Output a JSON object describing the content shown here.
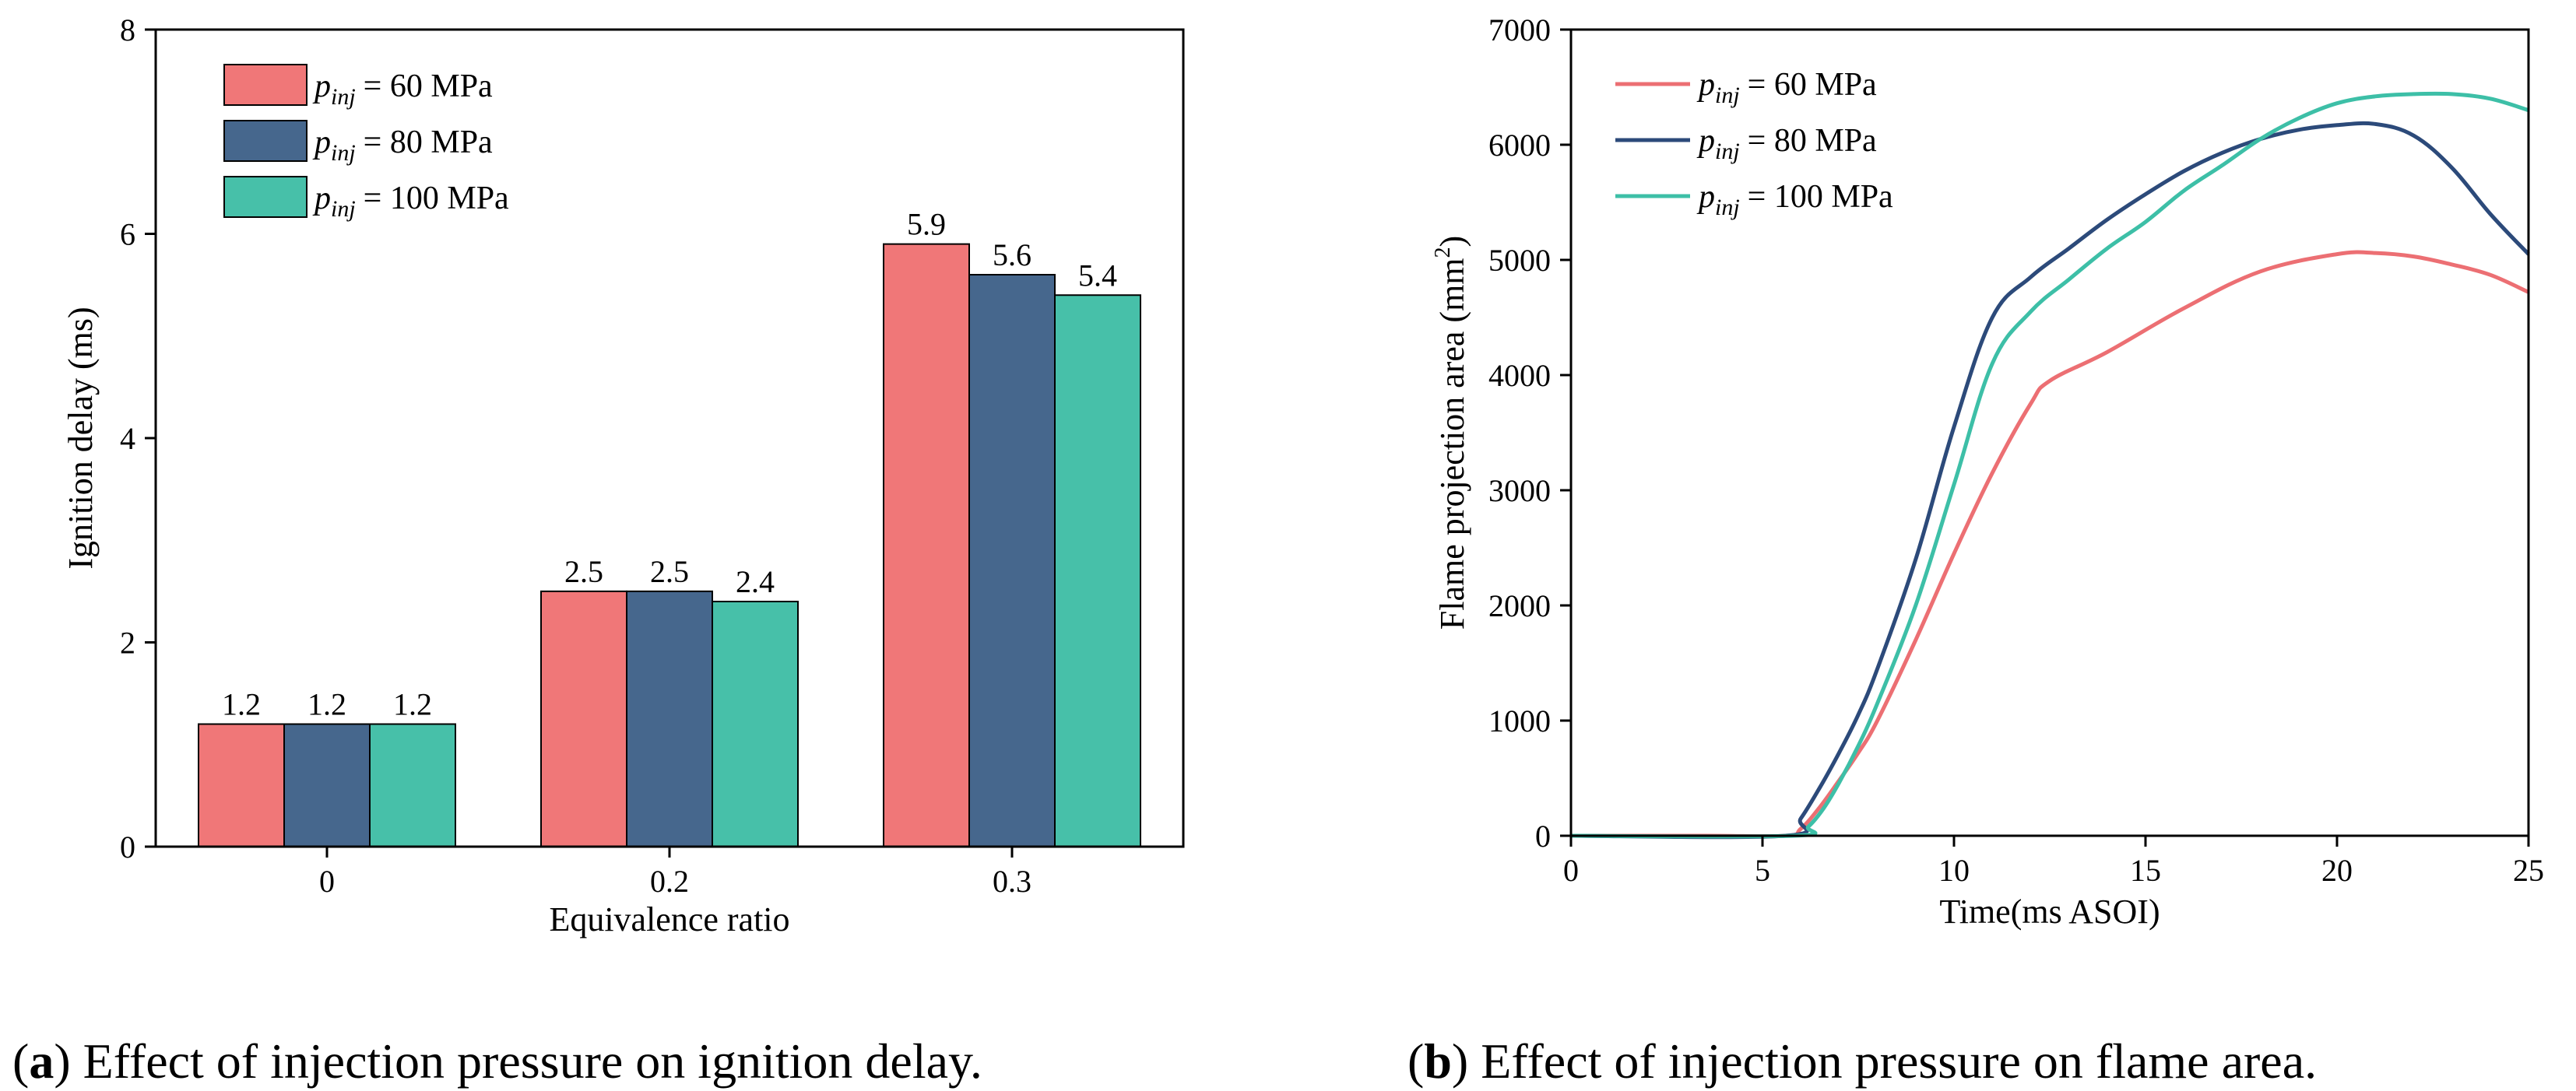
{
  "chart_data": [
    {
      "type": "bar",
      "title": "",
      "xlabel": "Equivalence ratio",
      "ylabel": "Ignition delay (ms)",
      "ylim": [
        0,
        8
      ],
      "yticks": [
        "0",
        "2",
        "4",
        "6",
        "8"
      ],
      "categories": [
        "0",
        "0.2",
        "0.3"
      ],
      "series": [
        {
          "name": "= 60 MPa",
          "values": [
            1.2,
            2.5,
            5.9
          ],
          "labels": [
            "1.2",
            "2.5",
            "5.9"
          ],
          "color": "#f07778"
        },
        {
          "name": "= 80 MPa",
          "values": [
            1.2,
            2.5,
            5.6
          ],
          "labels": [
            "1.2",
            "2.5",
            "5.6"
          ],
          "color": "#46678d"
        },
        {
          "name": "= 100 MPa",
          "values": [
            1.2,
            2.4,
            5.4
          ],
          "labels": [
            "1.2",
            "2.4",
            "5.4"
          ],
          "color": "#47c0a9"
        }
      ],
      "legend_symbol_main": "p",
      "legend_symbol_sub": "inj",
      "legend": "top-left",
      "grid": false,
      "caption_letter": "a",
      "caption_text": ") Effect of injection pressure on ignition delay."
    },
    {
      "type": "line",
      "title": "",
      "xlabel": "Time(ms ASOI)",
      "ylabel_main": "Flame projection area (mm",
      "ylabel_sup": "2",
      "ylabel_end": ")",
      "xlim": [
        0,
        25
      ],
      "ylim": [
        0,
        7000
      ],
      "xticks": [
        "0",
        "5",
        "10",
        "15",
        "20",
        "25"
      ],
      "yticks": [
        "0",
        "1000",
        "2000",
        "3000",
        "4000",
        "5000",
        "6000",
        "7000"
      ],
      "series": [
        {
          "name": "= 60 MPa",
          "color": "#ec6f73",
          "x": [
            0,
            3.5,
            5.6,
            6.0,
            6.5,
            7,
            7.5,
            8,
            9,
            10,
            11,
            12,
            12.5,
            14,
            16,
            18,
            20,
            21,
            22,
            23,
            24,
            25
          ],
          "y": [
            0,
            0,
            0,
            60,
            250,
            480,
            720,
            1000,
            1700,
            2450,
            3150,
            3750,
            3950,
            4200,
            4580,
            4900,
            5050,
            5060,
            5030,
            4960,
            4870,
            4720
          ]
        },
        {
          "name": "= 80 MPa",
          "color": "#2c4a7a",
          "x": [
            0,
            5.6,
            6.0,
            6.5,
            7,
            7.5,
            8,
            9,
            10,
            11,
            12,
            13,
            14,
            15,
            16,
            17,
            18,
            19,
            20,
            21,
            22,
            23,
            24,
            25
          ],
          "y": [
            0,
            0,
            150,
            420,
            720,
            1050,
            1450,
            2400,
            3550,
            4500,
            4850,
            5100,
            5350,
            5570,
            5770,
            5930,
            6050,
            6130,
            6170,
            6180,
            6080,
            5800,
            5400,
            5050
          ]
        },
        {
          "name": "= 100 MPa",
          "color": "#3dbfa7",
          "x": [
            0,
            5.8,
            6.2,
            6.6,
            7,
            7.5,
            8,
            9,
            10,
            11,
            12,
            13,
            14,
            15,
            16,
            17,
            18,
            19,
            20,
            21,
            22,
            23,
            24,
            25
          ],
          "y": [
            0,
            0,
            80,
            240,
            460,
            780,
            1150,
            2000,
            3050,
            4100,
            4550,
            4830,
            5100,
            5330,
            5600,
            5820,
            6050,
            6230,
            6360,
            6420,
            6440,
            6440,
            6400,
            6300
          ]
        }
      ],
      "legend_symbol_main": "p",
      "legend_symbol_sub": "inj",
      "legend": "top-left",
      "grid": false,
      "caption_letter": "b",
      "caption_text": ") Effect of injection pressure on flame area."
    }
  ]
}
